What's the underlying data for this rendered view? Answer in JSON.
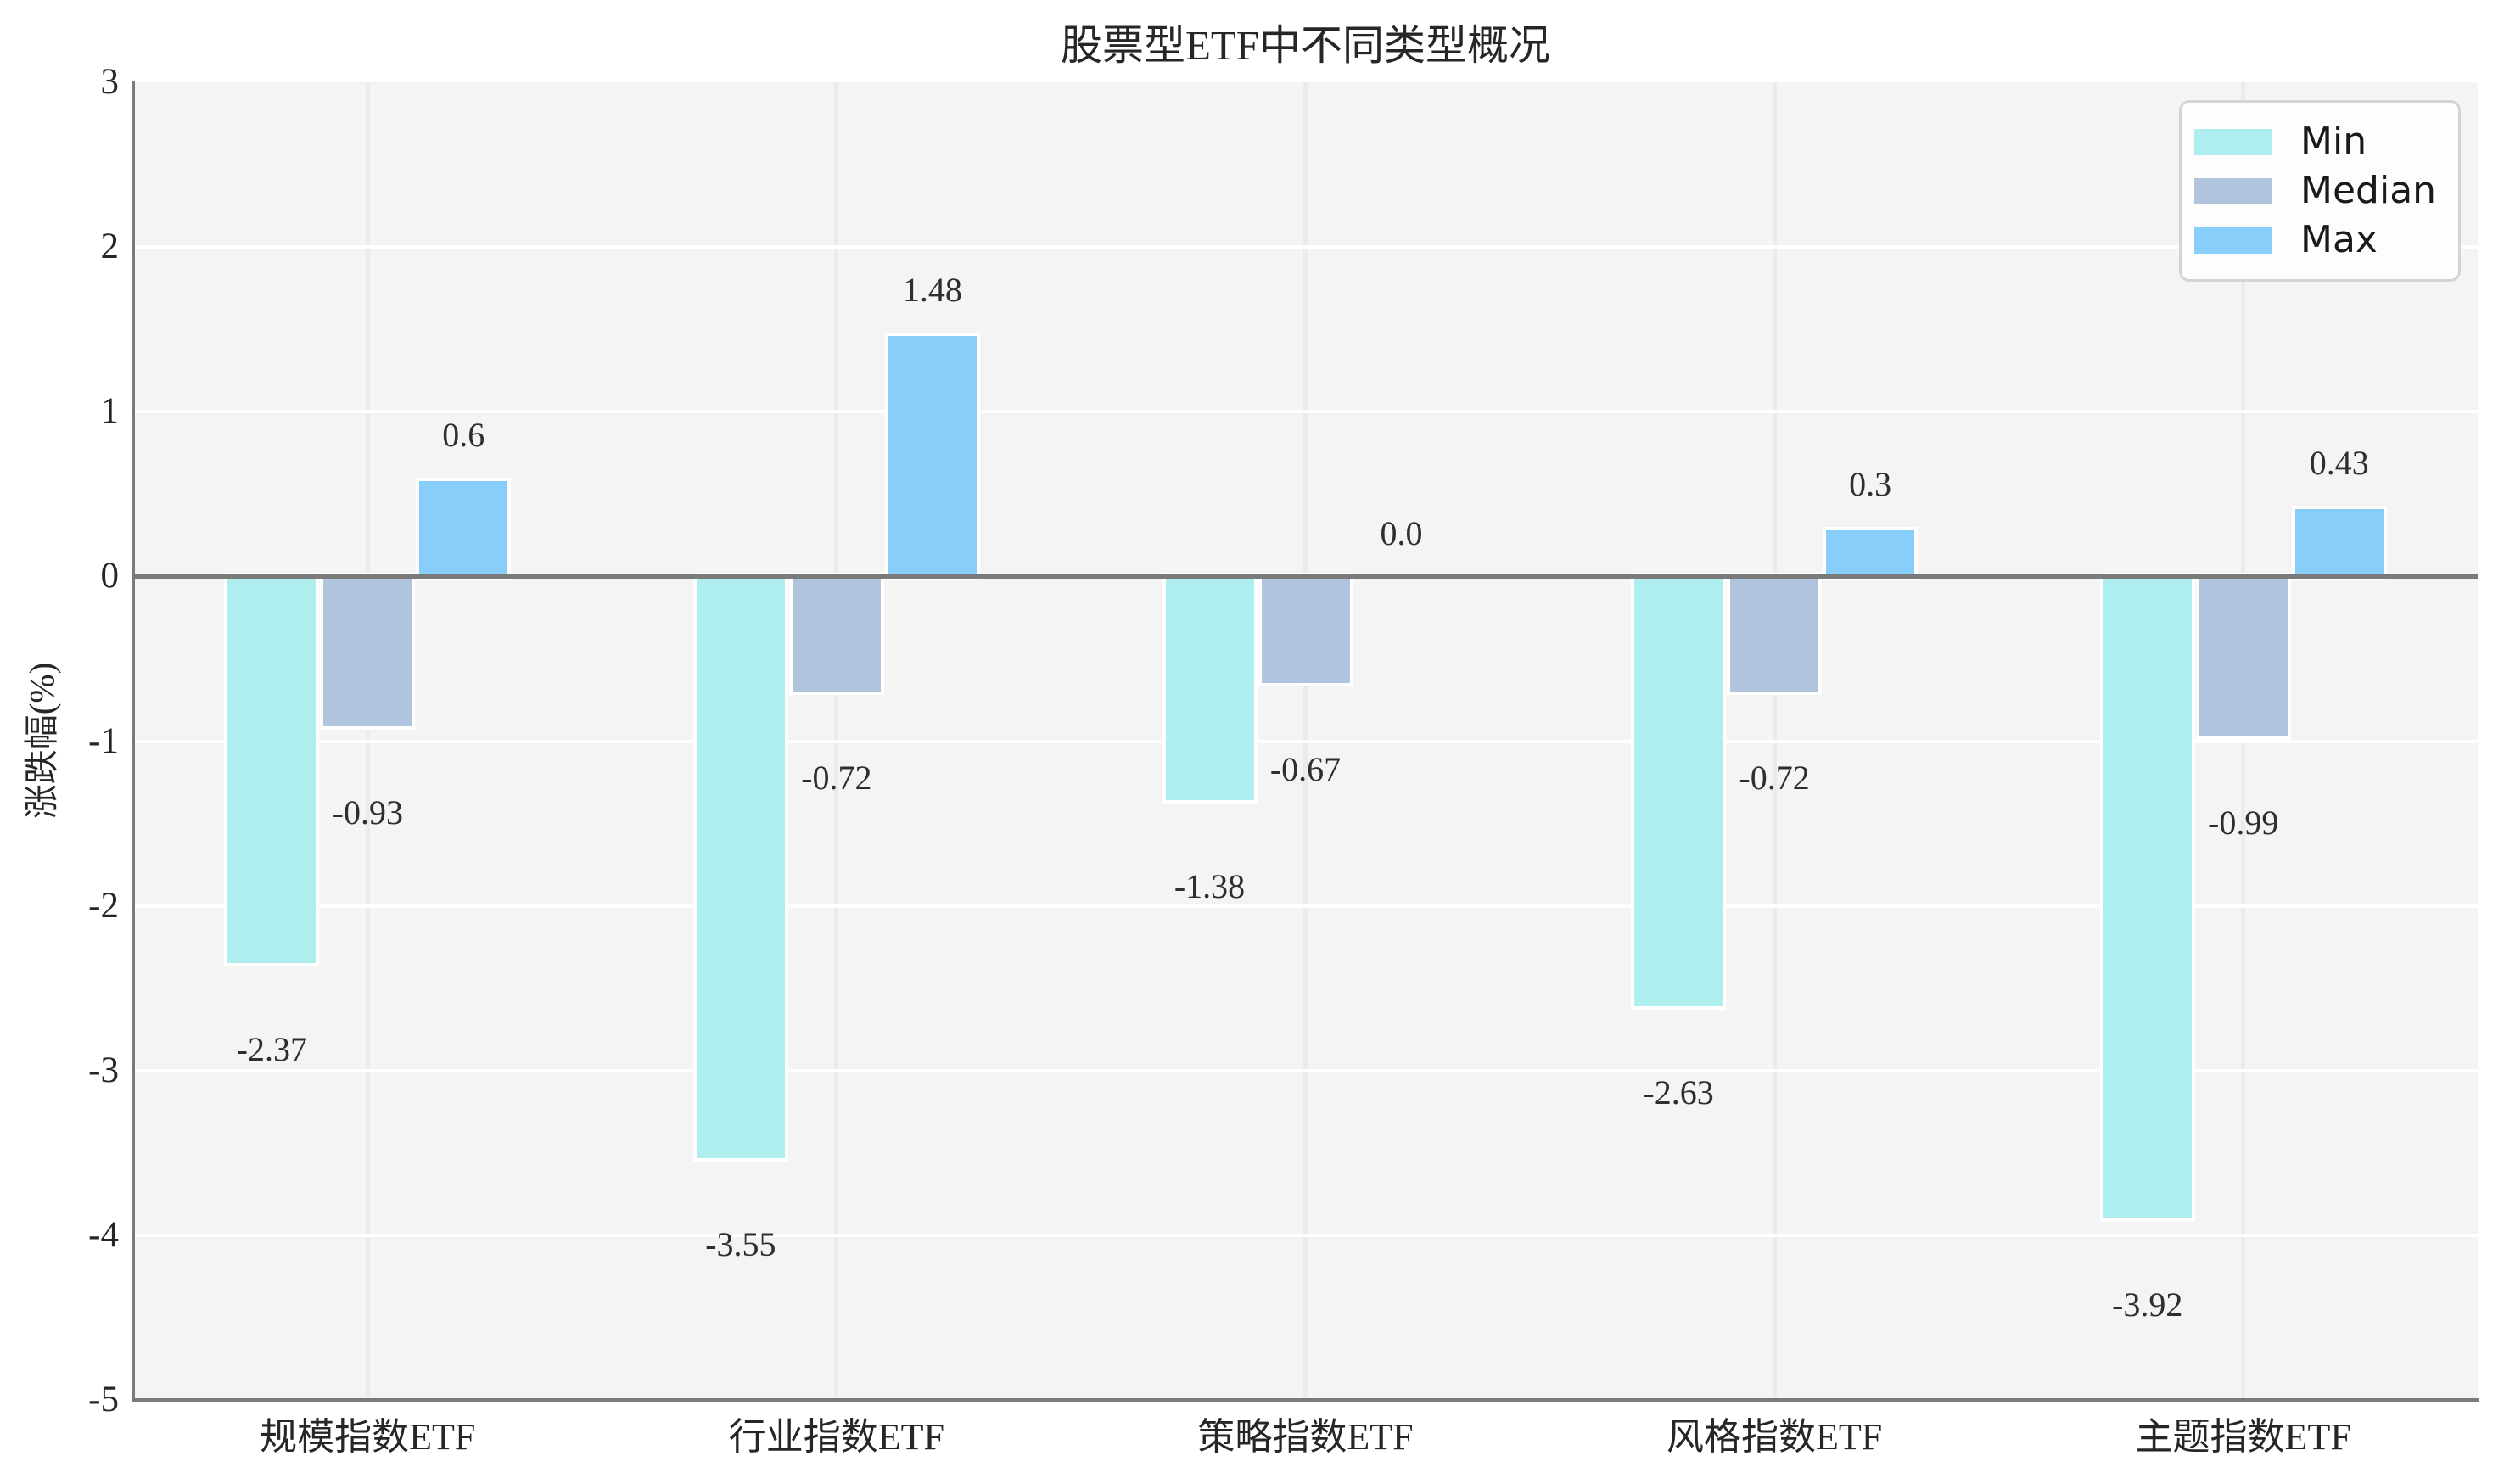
{
  "chart_data": {
    "type": "bar",
    "title": "股票型ETF中不同类型概况",
    "ylabel": "涨跌幅(%)",
    "xlabel": "",
    "categories": [
      "规模指数ETF",
      "行业指数ETF",
      "策略指数ETF",
      "风格指数ETF",
      "主题指数ETF"
    ],
    "series": [
      {
        "name": "Min",
        "color": "#AFEEEE",
        "values": [
          -2.37,
          -3.55,
          -1.38,
          -2.63,
          -3.92
        ],
        "labels": [
          "-2.37",
          "-3.55",
          "-1.38",
          "-2.63",
          "-3.92"
        ]
      },
      {
        "name": "Median",
        "color": "#B0C4DE",
        "values": [
          -0.93,
          -0.72,
          -0.67,
          -0.72,
          -0.99
        ],
        "labels": [
          "-0.93",
          "-0.72",
          "-0.67",
          "-0.72",
          "-0.99"
        ]
      },
      {
        "name": "Max",
        "color": "#87CEFA",
        "values": [
          0.6,
          1.48,
          0.0,
          0.3,
          0.43
        ],
        "labels": [
          "0.6",
          "1.48",
          "0.0",
          "0.3",
          "0.43"
        ]
      }
    ],
    "ylim": [
      -5,
      3
    ],
    "yticks": [
      "3",
      "2",
      "1",
      "0",
      "-1",
      "-2",
      "-3",
      "-4",
      "-5"
    ],
    "ytick_values": [
      3,
      2,
      1,
      0,
      -1,
      -2,
      -3,
      -4,
      -5
    ],
    "gridline_values": [
      2,
      1,
      -1,
      -2,
      -3,
      -4
    ],
    "grid": true,
    "legend_position": "upper right",
    "zero_line": true
  },
  "style_colors": {
    "plot_background": "#f4f4f4",
    "horizontal_grid": "#ffffff",
    "vertical_grid": "#ebebeb",
    "spine": "#7a7a7a",
    "zero_line": "#7a7a7a",
    "bar_edge": "#ffffff",
    "text": "#262626",
    "legend_background": "#fdfdfd",
    "legend_border": "#d4d4d4"
  }
}
